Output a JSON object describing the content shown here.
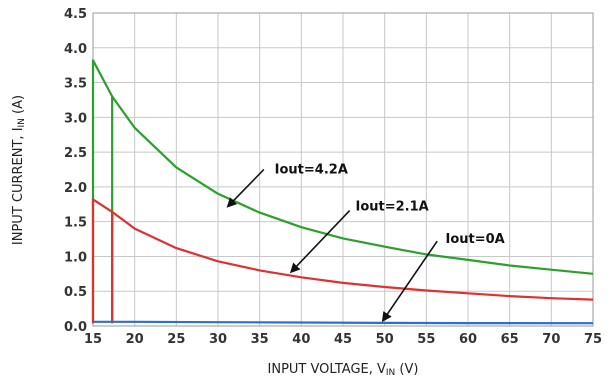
{
  "chart_data": {
    "type": "line",
    "xlabel_main": "INPUT VOLTAGE, V",
    "xlabel_sub": "IN",
    "xlabel_unit": " (V)",
    "ylabel_main": "INPUT CURRENT, I",
    "ylabel_sub": "IN",
    "ylabel_unit": " (A)",
    "xlim": [
      15,
      75
    ],
    "ylim": [
      0,
      4.5
    ],
    "x_ticks": [
      15,
      20,
      25,
      30,
      35,
      40,
      45,
      50,
      55,
      60,
      65,
      70,
      75
    ],
    "y_ticks": [
      "0.0",
      "0.5",
      "1.0",
      "1.5",
      "2.0",
      "2.5",
      "3.0",
      "3.5",
      "4.0",
      "4.5"
    ],
    "grid": true,
    "series": [
      {
        "name": "Iout=4.2A",
        "color": "#2ca02c",
        "points": [
          [
            15,
            0.04
          ],
          [
            15,
            3.82
          ],
          [
            17.3,
            3.3
          ],
          [
            20,
            2.85
          ],
          [
            25,
            2.28
          ],
          [
            30,
            1.9
          ],
          [
            35,
            1.63
          ],
          [
            40,
            1.42
          ],
          [
            45,
            1.26
          ],
          [
            50,
            1.14
          ],
          [
            55,
            1.03
          ],
          [
            60,
            0.95
          ],
          [
            65,
            0.87
          ],
          [
            70,
            0.81
          ],
          [
            75,
            0.75
          ]
        ],
        "rise": [
          [
            17.3,
            0.04
          ],
          [
            17.3,
            3.3
          ]
        ]
      },
      {
        "name": "Iout=2.1A",
        "color": "#e03030",
        "points": [
          [
            15,
            0.04
          ],
          [
            15,
            1.82
          ],
          [
            17.3,
            1.64
          ],
          [
            20,
            1.4
          ],
          [
            25,
            1.12
          ],
          [
            30,
            0.93
          ],
          [
            35,
            0.8
          ],
          [
            40,
            0.7
          ],
          [
            45,
            0.62
          ],
          [
            50,
            0.56
          ],
          [
            55,
            0.51
          ],
          [
            60,
            0.47
          ],
          [
            65,
            0.43
          ],
          [
            70,
            0.4
          ],
          [
            75,
            0.38
          ]
        ],
        "rise": [
          [
            17.3,
            0.04
          ],
          [
            17.3,
            1.64
          ]
        ]
      },
      {
        "name": "Iout=0A",
        "color": "#2a6fd6",
        "points": [
          [
            15,
            0.06
          ],
          [
            17.3,
            0.06
          ],
          [
            20,
            0.06
          ],
          [
            30,
            0.055
          ],
          [
            40,
            0.05
          ],
          [
            50,
            0.045
          ],
          [
            60,
            0.042
          ],
          [
            75,
            0.04
          ]
        ]
      }
    ],
    "annotations": [
      {
        "text": "Iout=4.2A",
        "label_at": [
          36.8,
          2.25
        ],
        "arrow_from": [
          35.5,
          2.25
        ],
        "arrow_to": [
          31.2,
          1.72
        ]
      },
      {
        "text": "Iout=2.1A",
        "label_at": [
          46.5,
          1.72
        ],
        "arrow_from": [
          45.8,
          1.66
        ],
        "arrow_to": [
          38.8,
          0.78
        ]
      },
      {
        "text": "Iout=0A",
        "label_at": [
          57.3,
          1.25
        ],
        "arrow_from": [
          56.3,
          1.22
        ],
        "arrow_to": [
          49.8,
          0.08
        ]
      }
    ]
  }
}
